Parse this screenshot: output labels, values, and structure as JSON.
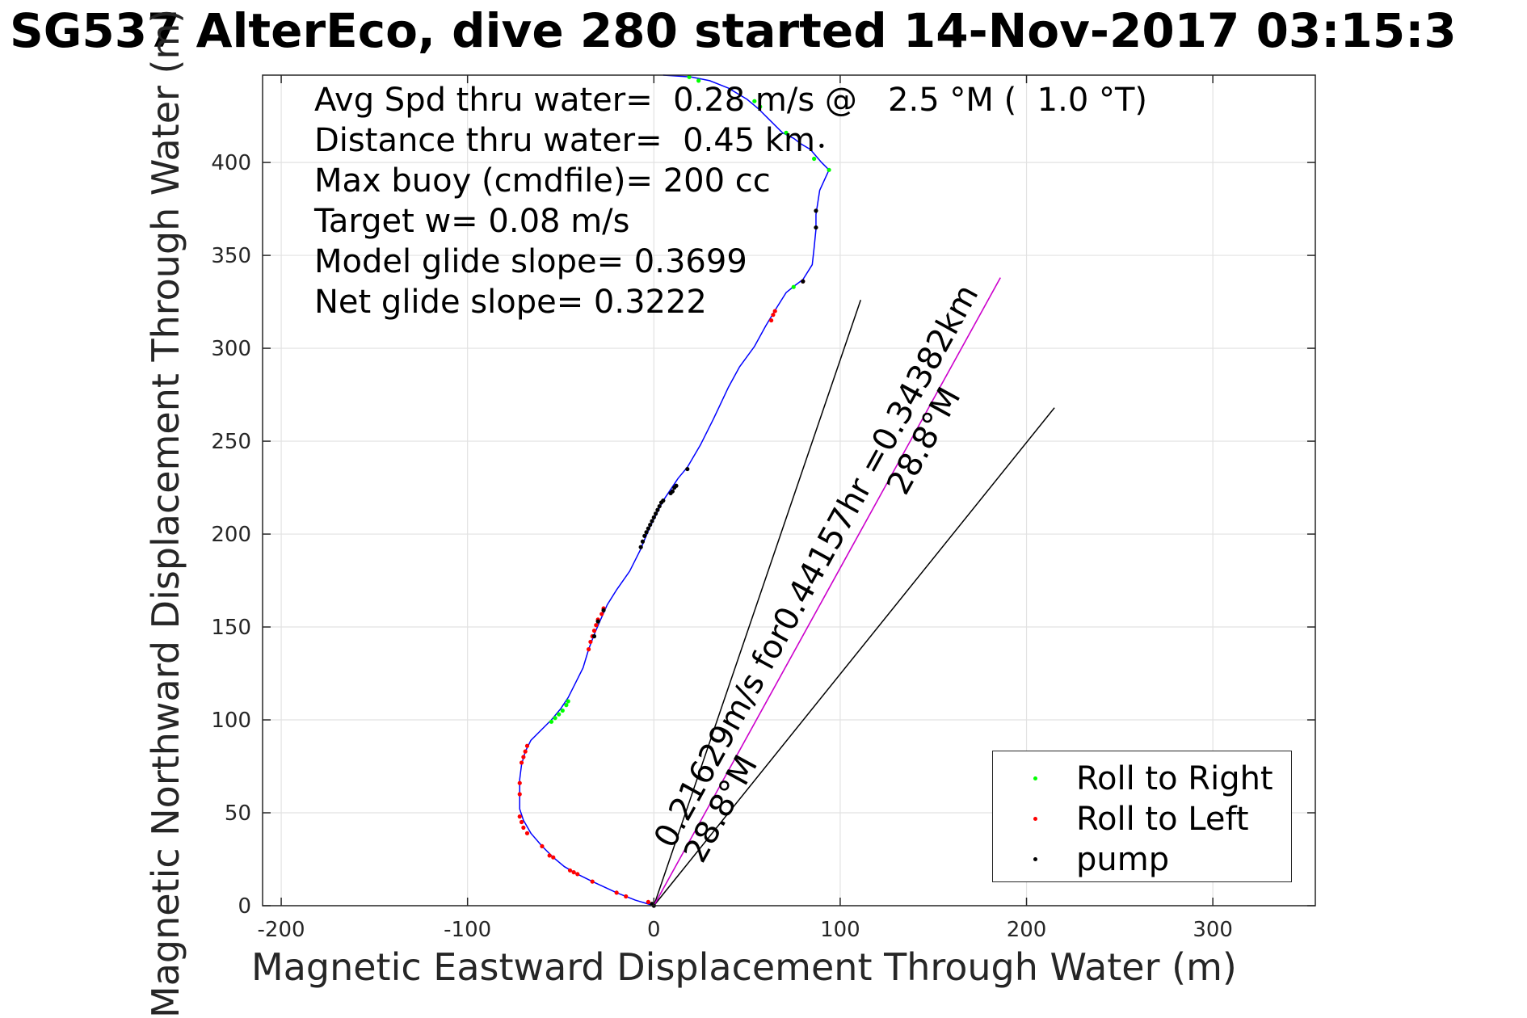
{
  "figure": {
    "title": "SG537 AlterEco, dive 280 started 14-Nov-2017 03:15:3"
  },
  "stats": [
    "Avg Spd thru water=  0.28 m/s @   2.5 °M (  1.0 °T)",
    "Distance thru water=  0.45 km",
    "Max buoy (cmdfile)= 200 cc",
    "Target w= 0.08 m/s",
    "Model glide slope= 0.3699",
    "Net glide slope= 0.3222"
  ],
  "legend": [
    {
      "label": "Roll to Right",
      "color": "#00ff00"
    },
    {
      "label": "Roll to Left",
      "color": "#ff0000"
    },
    {
      "label": "pump",
      "color": "#000000"
    }
  ],
  "chart_data": {
    "type": "line",
    "title": "SG537 AlterEco, dive 280 started 14-Nov-2017 03:15:3",
    "xlabel": "Magnetic Eastward Displacement Through Water (m)",
    "ylabel": "Magnetic Northward Displacement Through Water (m)",
    "xlim": [
      -210,
      355
    ],
    "ylim": [
      0,
      447
    ],
    "xticks": [
      -200,
      -100,
      0,
      100,
      200,
      300
    ],
    "xtick_labels": [
      "-200",
      "-100",
      "0",
      "100",
      "200",
      "300"
    ],
    "yticks": [
      0,
      50,
      100,
      150,
      200,
      250,
      300,
      350,
      400
    ],
    "ytick_labels": [
      "0",
      "50",
      "100",
      "150",
      "200",
      "250",
      "300",
      "350",
      "400"
    ],
    "grid": true,
    "legend_position": "bottom-right",
    "track": {
      "color": "#0000ff",
      "points": [
        [
          0,
          0
        ],
        [
          -10,
          3
        ],
        [
          -20,
          7
        ],
        [
          -33,
          13
        ],
        [
          -41,
          17
        ],
        [
          -48,
          21
        ],
        [
          -54,
          26
        ],
        [
          -60,
          32
        ],
        [
          -66,
          39
        ],
        [
          -70,
          46
        ],
        [
          -72,
          52
        ],
        [
          -72,
          60
        ],
        [
          -72,
          68
        ],
        [
          -71,
          76
        ],
        [
          -69,
          83
        ],
        [
          -66,
          89
        ],
        [
          -60,
          95
        ],
        [
          -55,
          100
        ],
        [
          -50,
          106
        ],
        [
          -46,
          112
        ],
        [
          -42,
          120
        ],
        [
          -38,
          128
        ],
        [
          -35,
          138
        ],
        [
          -32,
          146
        ],
        [
          -29,
          153
        ],
        [
          -25,
          162
        ],
        [
          -20,
          170
        ],
        [
          -13,
          180
        ],
        [
          -7,
          192
        ],
        [
          -5,
          197
        ],
        [
          -2,
          204
        ],
        [
          2,
          212
        ],
        [
          5,
          218
        ],
        [
          9,
          224
        ],
        [
          13,
          230
        ],
        [
          18,
          236
        ],
        [
          25,
          248
        ],
        [
          32,
          262
        ],
        [
          40,
          279
        ],
        [
          46,
          290
        ],
        [
          54,
          301
        ],
        [
          60,
          312
        ],
        [
          66,
          322
        ],
        [
          71,
          330
        ],
        [
          76,
          334
        ],
        [
          80,
          337
        ],
        [
          85,
          345
        ],
        [
          86,
          354
        ],
        [
          87,
          364
        ],
        [
          87,
          372
        ],
        [
          89,
          385
        ],
        [
          94,
          396
        ],
        [
          90,
          400
        ],
        [
          84,
          407
        ],
        [
          79,
          410
        ],
        [
          75,
          413
        ],
        [
          69,
          416
        ],
        [
          62,
          423
        ],
        [
          56,
          429
        ],
        [
          50,
          434
        ],
        [
          40,
          440
        ],
        [
          30,
          444
        ],
        [
          20,
          446
        ],
        [
          5,
          447
        ]
      ]
    },
    "roll_right_points": [
      [
        -55,
        99
      ],
      [
        -53,
        101
      ],
      [
        -51,
        103
      ],
      [
        -49,
        105
      ],
      [
        -47,
        108
      ],
      [
        -46,
        110
      ],
      [
        94,
        396
      ],
      [
        86,
        402
      ],
      [
        71,
        416
      ],
      [
        57,
        430
      ],
      [
        54,
        433
      ],
      [
        24,
        444
      ],
      [
        19,
        446
      ],
      [
        75,
        333
      ]
    ],
    "roll_left_points": [
      [
        -3,
        2
      ],
      [
        -15,
        5
      ],
      [
        -20,
        7
      ],
      [
        -33,
        13
      ],
      [
        -41,
        17
      ],
      [
        -43,
        18
      ],
      [
        -45,
        19
      ],
      [
        -54,
        26
      ],
      [
        -56,
        27
      ],
      [
        -60,
        32
      ],
      [
        -68,
        39
      ],
      [
        -70,
        42
      ],
      [
        -71,
        45
      ],
      [
        -72,
        48
      ],
      [
        -72,
        60
      ],
      [
        -72,
        66
      ],
      [
        -71,
        77
      ],
      [
        -70,
        80
      ],
      [
        -69,
        83
      ],
      [
        -68,
        86
      ],
      [
        -35,
        138
      ],
      [
        -34,
        142
      ],
      [
        -33,
        145
      ],
      [
        -32,
        148
      ],
      [
        -31,
        151
      ],
      [
        -30,
        154
      ],
      [
        -28,
        157
      ],
      [
        -27,
        160
      ],
      [
        63,
        315
      ],
      [
        64,
        318
      ],
      [
        65,
        320
      ],
      [
        80,
        336
      ]
    ],
    "pump_points": [
      [
        0,
        0
      ],
      [
        -1,
        1
      ],
      [
        -32,
        145
      ],
      [
        -30,
        153
      ],
      [
        -27,
        159
      ],
      [
        -7,
        193
      ],
      [
        -6,
        196
      ],
      [
        -5,
        199
      ],
      [
        -4,
        201
      ],
      [
        -3,
        203
      ],
      [
        -2,
        205
      ],
      [
        -1,
        207
      ],
      [
        0,
        209
      ],
      [
        1,
        211
      ],
      [
        2,
        213
      ],
      [
        3,
        215
      ],
      [
        4,
        217
      ],
      [
        5,
        218
      ],
      [
        9,
        222
      ],
      [
        10,
        223
      ],
      [
        11,
        225
      ],
      [
        12,
        226
      ],
      [
        18,
        235
      ],
      [
        87,
        365
      ],
      [
        87,
        374
      ],
      [
        90,
        409
      ],
      [
        80,
        336
      ]
    ],
    "heading_line": {
      "start": [
        0,
        0
      ],
      "end": [
        186,
        338
      ],
      "color": "#cc00cc"
    },
    "heading_wedge": [
      {
        "start": [
          0,
          0
        ],
        "end": [
          111,
          326
        ]
      },
      {
        "start": [
          0,
          0
        ],
        "end": [
          215,
          268
        ]
      }
    ],
    "annotations": [
      {
        "text": "0.21629m/s for0.44157hr =0.34382km",
        "x": 10,
        "y": 30,
        "angle_deg": -61.2
      },
      {
        "text": "28.8°M",
        "x": 26,
        "y": 22,
        "angle_deg": -61.2
      },
      {
        "text": "28.8°M",
        "x": 135,
        "y": 220,
        "angle_deg": -61.2
      }
    ]
  }
}
